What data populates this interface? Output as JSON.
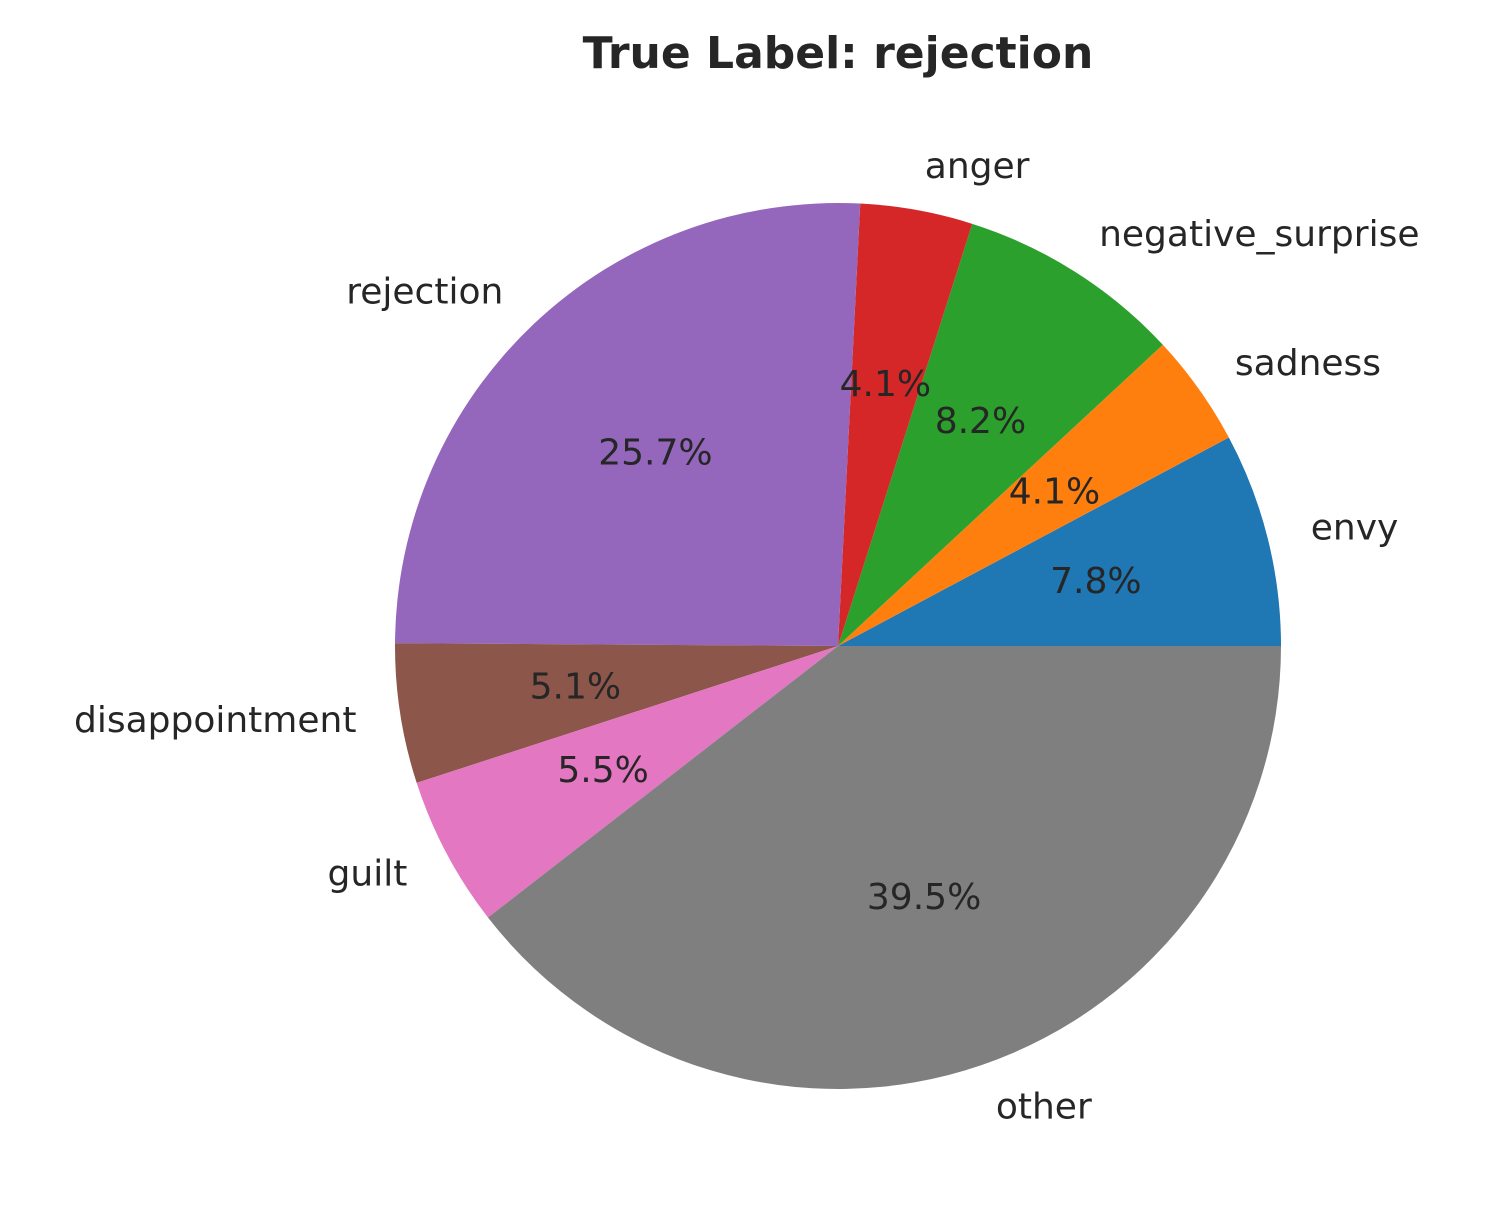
{
  "chart_data": {
    "type": "pie",
    "title": "True Label: rejection",
    "slices": [
      {
        "label": "envy",
        "value": 7.8,
        "pct_label": "7.8%",
        "color": "#1f77b4"
      },
      {
        "label": "sadness",
        "value": 4.1,
        "pct_label": "4.1%",
        "color": "#ff7f0e"
      },
      {
        "label": "negative_surprise",
        "value": 8.2,
        "pct_label": "8.2%",
        "color": "#2ca02c"
      },
      {
        "label": "anger",
        "value": 4.1,
        "pct_label": "4.1%",
        "color": "#d62728"
      },
      {
        "label": "rejection",
        "value": 25.7,
        "pct_label": "25.7%",
        "color": "#9467bd"
      },
      {
        "label": "disappointment",
        "value": 5.1,
        "pct_label": "5.1%",
        "color": "#8c564b"
      },
      {
        "label": "guilt",
        "value": 5.5,
        "pct_label": "5.5%",
        "color": "#e377c2"
      },
      {
        "label": "other",
        "value": 39.5,
        "pct_label": "39.5%",
        "color": "#7f7f7f"
      }
    ]
  }
}
